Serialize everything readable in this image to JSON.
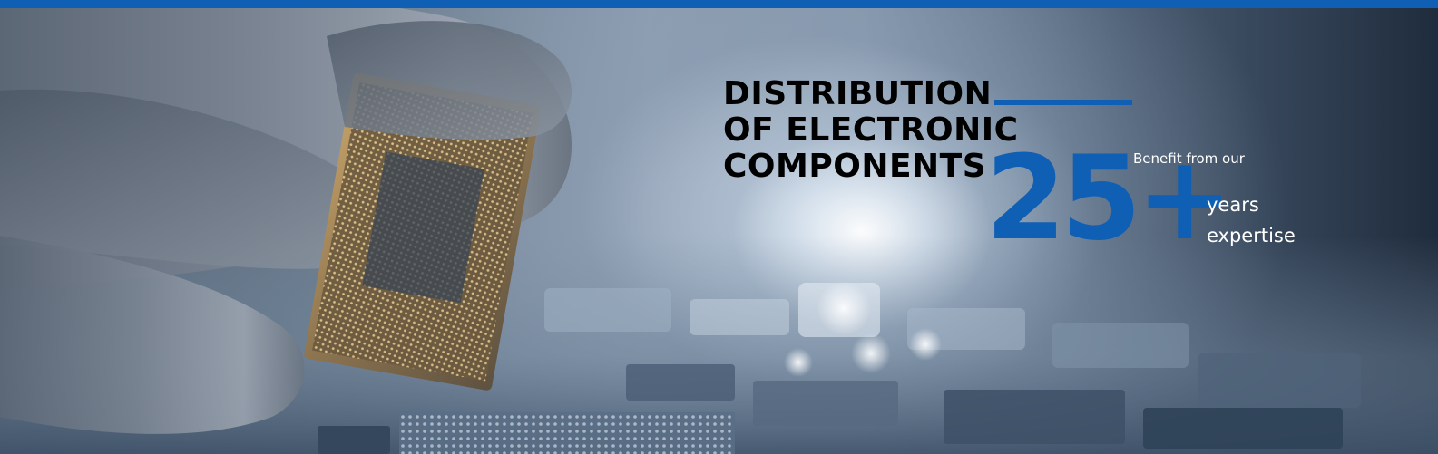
{
  "hero": {
    "title_lines": [
      "DISTRIBUTION",
      "OF ELECTRONIC",
      "COMPONENTS"
    ],
    "number": "25+",
    "benefit_text": "Benefit from our",
    "years_line_1": "years",
    "years_line_2": "expertise"
  },
  "colors": {
    "accent": "#0f5fb4",
    "title": "#000000",
    "caption": "#ffffff"
  },
  "icons": {
    "background_image": "hand-holding-cpu-chip-over-circuit-board"
  }
}
